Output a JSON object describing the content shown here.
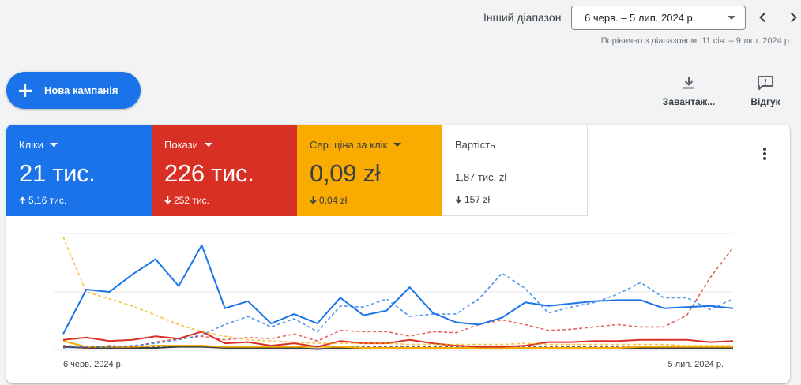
{
  "header": {
    "range_label": "Інший діапазон",
    "range_value": "6 черв. – 5 лип. 2024 р.",
    "compare_text": "Порівняно з діапазоном: 11 січ. – 9 лют. 2024 р."
  },
  "actions": {
    "new_campaign": "Нова кампанія",
    "download": "Завантаж...",
    "feedback": "Відгук"
  },
  "metrics": {
    "clicks": {
      "title": "Кліки",
      "value": "21 тис.",
      "change": "5,16 тис.",
      "direction": "up",
      "color": "#1a73e8"
    },
    "impressions": {
      "title": "Покази",
      "value": "226 тис.",
      "change": "252 тис.",
      "direction": "down",
      "color": "#d93025"
    },
    "cpc": {
      "title": "Сер. ціна за клік",
      "value": "0,09 zł",
      "change": "0,04 zł",
      "direction": "down",
      "color": "#f9ab00"
    },
    "cost": {
      "title": "Вартість",
      "value": "1,87 тис. zł",
      "change": "157 zł",
      "direction": "down",
      "color": "#ffffff"
    }
  },
  "chart_data": {
    "type": "line",
    "x_start": "6 черв. 2024 р.",
    "x_end": "5 лип. 2024 р.",
    "ylim": [
      0,
      100
    ],
    "grid": true,
    "series": [
      {
        "key": "clicks",
        "style": "solid",
        "color": "#1a73e8",
        "values": [
          14,
          52,
          50,
          65,
          78,
          55,
          90,
          36,
          42,
          23,
          31,
          23,
          45,
          30,
          34,
          54,
          32,
          24,
          22,
          28,
          41,
          38,
          40,
          42,
          43,
          43,
          36,
          37,
          38,
          36
        ]
      },
      {
        "key": "clicks_prev",
        "style": "dashed",
        "color": "#1a73e8",
        "values": [
          2,
          3,
          3,
          4,
          6,
          9,
          13,
          22,
          29,
          20,
          27,
          16,
          38,
          37,
          44,
          29,
          31,
          31,
          44,
          66,
          53,
          32,
          37,
          41,
          48,
          58,
          45,
          45,
          35,
          44
        ]
      },
      {
        "key": "impressions",
        "style": "solid",
        "color": "#d93025",
        "values": [
          9,
          11,
          8,
          9,
          12,
          10,
          16,
          6,
          7,
          4,
          6,
          3,
          8,
          6,
          6,
          9,
          6,
          4,
          3,
          3,
          4,
          7,
          7,
          8,
          8,
          9,
          9,
          9,
          7,
          8
        ]
      },
      {
        "key": "impressions_prev",
        "style": "dashed",
        "color": "#d93025",
        "values": [
          3,
          2,
          4,
          3,
          7,
          10,
          12,
          9,
          11,
          10,
          14,
          8,
          17,
          16,
          16,
          12,
          16,
          15,
          22,
          26,
          22,
          17,
          18,
          20,
          22,
          20,
          20,
          30,
          62,
          88
        ]
      },
      {
        "key": "cpc",
        "style": "solid",
        "color": "#f9ab00",
        "values": [
          8,
          3,
          3,
          3,
          4,
          4,
          4,
          3,
          3,
          3,
          3,
          3,
          3,
          2,
          2,
          2,
          2,
          2,
          2,
          2,
          2,
          2,
          2,
          2,
          2,
          3,
          3,
          3,
          3,
          3
        ]
      },
      {
        "key": "cpc_prev",
        "style": "dashed",
        "color": "#f9ab00",
        "values": [
          97,
          50,
          44,
          38,
          30,
          22,
          16,
          12,
          9,
          8,
          7,
          6,
          6,
          6,
          6,
          5,
          5,
          5,
          5,
          5,
          6,
          5,
          5,
          5,
          5,
          5,
          5,
          4,
          4,
          4
        ]
      },
      {
        "key": "cost",
        "style": "solid",
        "color": "#3c4043",
        "values": [
          3,
          2,
          2,
          2,
          2,
          3,
          3,
          2,
          2,
          2,
          2,
          1,
          2,
          2,
          2,
          2,
          2,
          2,
          2,
          2,
          2,
          2,
          2,
          2,
          2,
          2,
          2,
          2,
          2,
          2
        ]
      },
      {
        "key": "cost_prev",
        "style": "dashed",
        "color": "#3c4043",
        "values": [
          4,
          3,
          3,
          3,
          3,
          3,
          3,
          3,
          3,
          3,
          3,
          3,
          3,
          3,
          3,
          3,
          3,
          3,
          3,
          3,
          3,
          3,
          3,
          3,
          3,
          3,
          3,
          3,
          3,
          3
        ]
      }
    ]
  }
}
